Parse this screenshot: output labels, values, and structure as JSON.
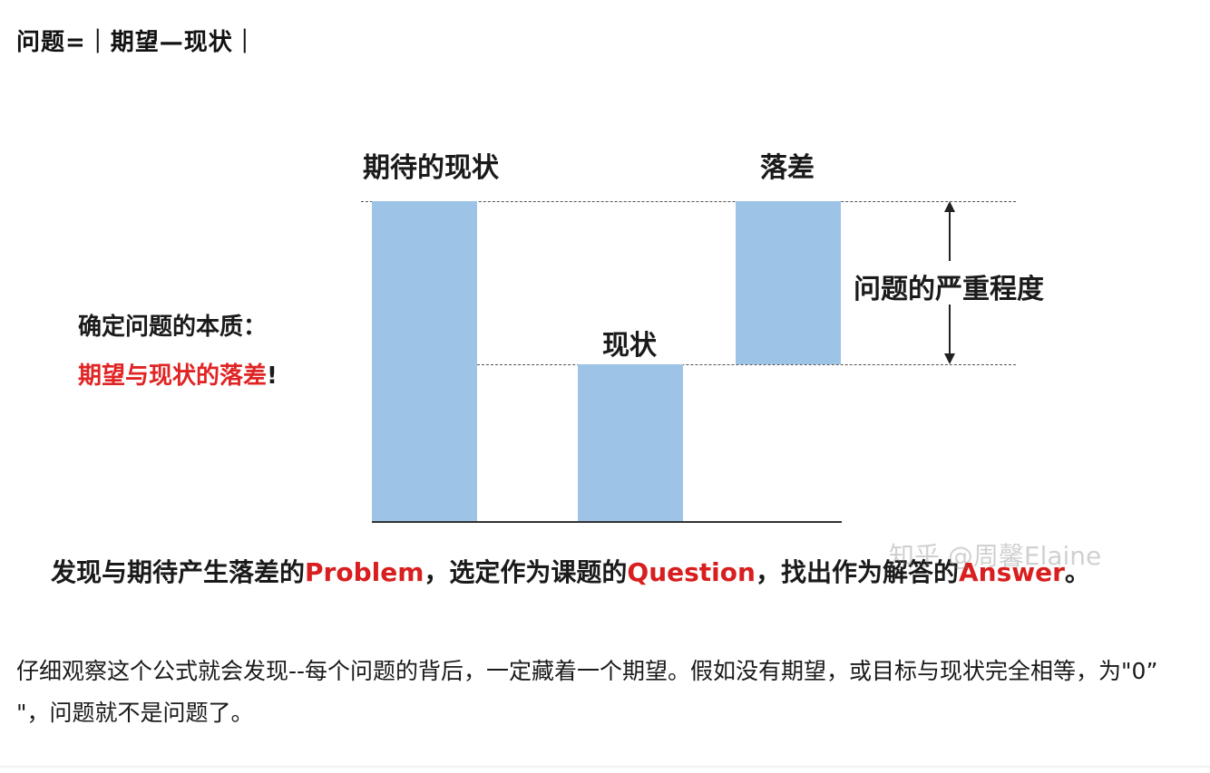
{
  "heading": "问题=｜期望—现状｜",
  "figure": {
    "label_expected": "期待的现状",
    "label_gap": "落差",
    "label_current": "现状",
    "label_severity": "问题的严重程度",
    "side_title": "确定问题的本质：",
    "side_red": "期望与现状的落差",
    "side_excl": "!",
    "caption": {
      "part1": "发现与期待产生落差的",
      "problem": "Problem",
      "part2": "，选定作为课题的",
      "question": "Question",
      "part3": "，找出作为解答的",
      "answer": "Answer",
      "part4": "。"
    },
    "watermark": "知乎 @周馨Elaine",
    "colors": {
      "bar": "#9dc3e6",
      "accent_red": "#d81e1e"
    }
  },
  "paragraph": "仔细观察这个公式就会发现--每个问题的背后，一定藏着一个期望。假如没有期望，或目标与现状完全相等，为\"0” \"，问题就不是问题了。"
}
